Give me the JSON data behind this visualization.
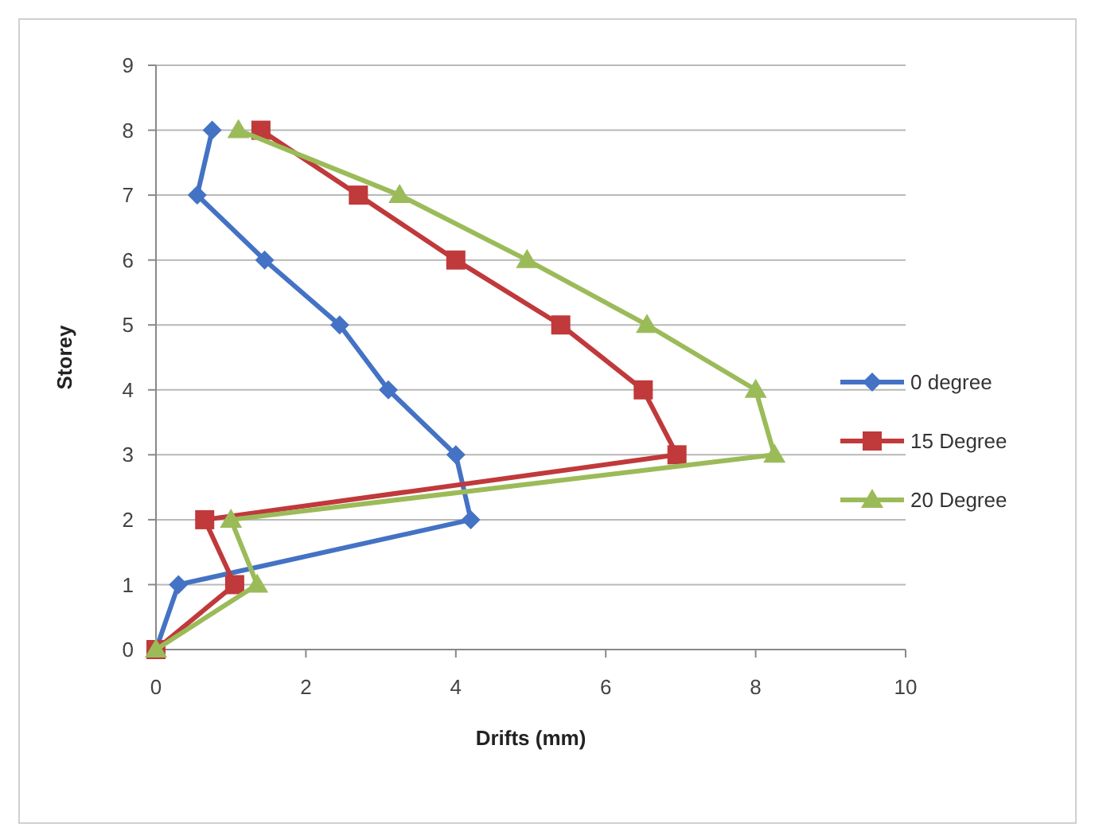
{
  "chart_data": {
    "type": "line",
    "xlabel": "Drifts (mm)",
    "ylabel": "Storey",
    "xlim": [
      0,
      10
    ],
    "xticks": [
      0,
      2,
      4,
      6,
      8,
      10
    ],
    "ylim": [
      0,
      9
    ],
    "yticks": [
      0,
      1,
      2,
      3,
      4,
      5,
      6,
      7,
      8,
      9
    ],
    "grid": "y",
    "legend": "right",
    "series": [
      {
        "name": "0 degree",
        "color": "#4472c4",
        "marker": "diamond",
        "x": [
          0,
          0.3,
          4.2,
          4.0,
          3.1,
          2.45,
          1.45,
          0.55,
          0.75
        ],
        "values": [
          0,
          1,
          2,
          3,
          4,
          5,
          6,
          7,
          8
        ]
      },
      {
        "name": "15 Degree",
        "color": "#c0393b",
        "marker": "square",
        "x": [
          0,
          1.05,
          0.65,
          6.95,
          6.5,
          5.4,
          4.0,
          2.7,
          1.4
        ],
        "values": [
          0,
          1,
          2,
          3,
          4,
          5,
          6,
          7,
          8
        ]
      },
      {
        "name": "20 Degree",
        "color": "#9bbb59",
        "marker": "triangle",
        "x": [
          0,
          1.35,
          1.0,
          8.25,
          8.0,
          6.55,
          4.95,
          3.25,
          1.1
        ],
        "values": [
          0,
          1,
          2,
          3,
          4,
          5,
          6,
          7,
          8
        ]
      }
    ]
  }
}
